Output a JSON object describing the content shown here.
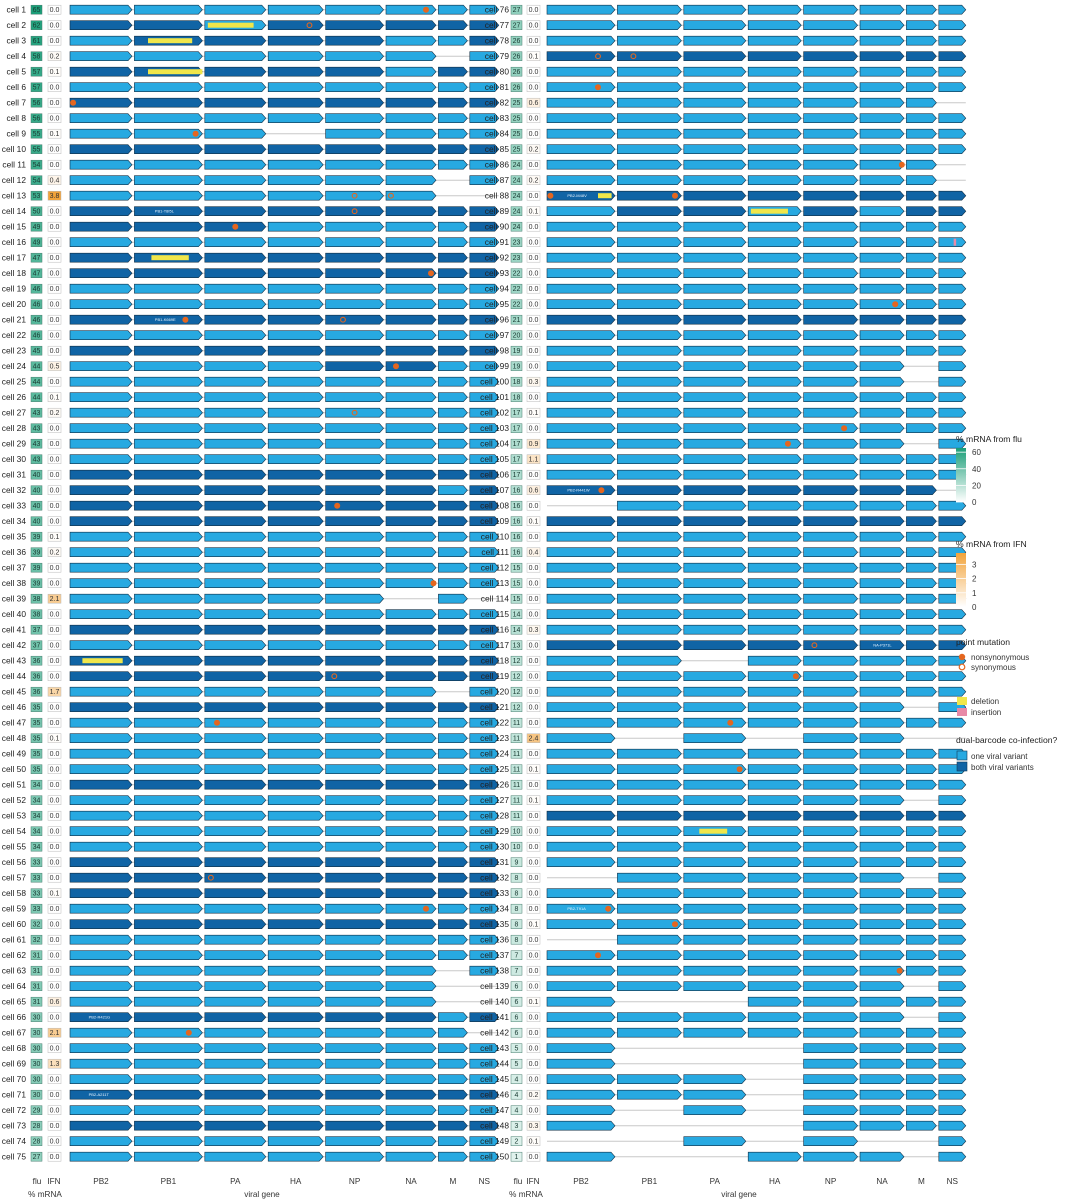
{
  "chart_data": {
    "type": "heatmap",
    "title": "",
    "genes": [
      "PB2",
      "PB1",
      "PA",
      "HA",
      "NP",
      "NA",
      "M",
      "NS"
    ],
    "column_headers": {
      "flu": "flu",
      "ifn": "IFN"
    },
    "xlabel_left": "% mRNA",
    "xlabel_right": "viral gene",
    "legend": {
      "flu": {
        "title": "% mRNA from flu",
        "ticks": [
          "60",
          "40",
          "20",
          "0"
        ],
        "range": [
          0,
          65
        ]
      },
      "ifn": {
        "title": "% mRNA from IFN",
        "ticks": [
          "3",
          "2",
          "1",
          "0"
        ],
        "range": [
          0,
          3.8
        ]
      },
      "mutation": {
        "title": "point mutation",
        "items": [
          "nonsynonymous",
          "synonymous"
        ]
      },
      "indel": {
        "items": [
          "deletion",
          "insertion"
        ]
      },
      "dual": {
        "title": "dual-barcode co-infection?",
        "items": [
          "one viral variant",
          "both viral variants"
        ]
      }
    },
    "colors": {
      "one": "#27a9e1",
      "both": "#1064a5",
      "mutation": "#e4661f",
      "deletion": "#f0e64a",
      "insertion": "#e88aa7",
      "ifn": "#f2a33a",
      "flu": "#1a9e78"
    },
    "row_encoding": "flu pct | ifn pct | genes PB2..NS (1 = one variant, 2 = both variants, 0 = absent)",
    "rows": [
      [
        "cell 1",
        65,
        "0.0",
        "11111111"
      ],
      [
        "cell 2",
        62,
        "0.0",
        "22122222"
      ],
      [
        "cell 3",
        61,
        "0.0",
        "12222112"
      ],
      [
        "cell 4",
        58,
        "0.2",
        "11111101"
      ],
      [
        "cell 5",
        57,
        "0.1",
        "22222122"
      ],
      [
        "cell 6",
        57,
        "0.0",
        "11111111"
      ],
      [
        "cell 7",
        56,
        "0.0",
        "22222222"
      ],
      [
        "cell 8",
        56,
        "0.0",
        "11111111"
      ],
      [
        "cell 9",
        55,
        "0.1",
        "11101111"
      ],
      [
        "cell 10",
        55,
        "0.0",
        "22222222"
      ],
      [
        "cell 11",
        54,
        "0.0",
        "11111111"
      ],
      [
        "cell 12",
        54,
        "0.4",
        "11111101"
      ],
      [
        "cell 13",
        53,
        "3.8",
        "11111100"
      ],
      [
        "cell 14",
        50,
        "0.0",
        "22222222"
      ],
      [
        "cell 15",
        49,
        "0.0",
        "22211112"
      ],
      [
        "cell 16",
        49,
        "0.0",
        "11111111"
      ],
      [
        "cell 17",
        47,
        "0.0",
        "22222222"
      ],
      [
        "cell 18",
        47,
        "0.0",
        "22222222"
      ],
      [
        "cell 19",
        46,
        "0.0",
        "11111111"
      ],
      [
        "cell 20",
        46,
        "0.0",
        "11111111"
      ],
      [
        "cell 21",
        46,
        "0.0",
        "22222222"
      ],
      [
        "cell 22",
        46,
        "0.0",
        "11111111"
      ],
      [
        "cell 23",
        45,
        "0.0",
        "22222222"
      ],
      [
        "cell 24",
        44,
        "0.5",
        "11112211"
      ],
      [
        "cell 25",
        44,
        "0.0",
        "11111111"
      ],
      [
        "cell 26",
        44,
        "0.1",
        "11111111"
      ],
      [
        "cell 27",
        43,
        "0.2",
        "11111111"
      ],
      [
        "cell 28",
        43,
        "0.0",
        "11111111"
      ],
      [
        "cell 29",
        43,
        "0.0",
        "11111111"
      ],
      [
        "cell 30",
        43,
        "0.0",
        "11111111"
      ],
      [
        "cell 31",
        40,
        "0.0",
        "22222222"
      ],
      [
        "cell 32",
        40,
        "0.0",
        "22222212"
      ],
      [
        "cell 33",
        40,
        "0.0",
        "22222222"
      ],
      [
        "cell 34",
        40,
        "0.0",
        "22222222"
      ],
      [
        "cell 35",
        39,
        "0.1",
        "11111111"
      ],
      [
        "cell 36",
        39,
        "0.2",
        "11111111"
      ],
      [
        "cell 37",
        39,
        "0.0",
        "11111111"
      ],
      [
        "cell 38",
        39,
        "0.0",
        "11111111"
      ],
      [
        "cell 39",
        38,
        "2.1",
        "11111010"
      ],
      [
        "cell 40",
        38,
        "0.0",
        "11111111"
      ],
      [
        "cell 41",
        37,
        "0.0",
        "22222222"
      ],
      [
        "cell 42",
        37,
        "0.0",
        "11111111"
      ],
      [
        "cell 43",
        36,
        "0.0",
        "22222222"
      ],
      [
        "cell 44",
        36,
        "0.0",
        "22222222"
      ],
      [
        "cell 45",
        36,
        "1.7",
        "11111101"
      ],
      [
        "cell 46",
        35,
        "0.0",
        "22222222"
      ],
      [
        "cell 47",
        35,
        "0.0",
        "11111111"
      ],
      [
        "cell 48",
        35,
        "0.1",
        "11111111"
      ],
      [
        "cell 49",
        35,
        "0.0",
        "11111111"
      ],
      [
        "cell 50",
        35,
        "0.0",
        "11111111"
      ],
      [
        "cell 51",
        34,
        "0.0",
        "22222222"
      ],
      [
        "cell 52",
        34,
        "0.0",
        "11111111"
      ],
      [
        "cell 53",
        34,
        "0.0",
        "11111111"
      ],
      [
        "cell 54",
        34,
        "0.0",
        "11111111"
      ],
      [
        "cell 55",
        34,
        "0.0",
        "11111111"
      ],
      [
        "cell 56",
        33,
        "0.0",
        "22222222"
      ],
      [
        "cell 57",
        33,
        "0.0",
        "22222222"
      ],
      [
        "cell 58",
        33,
        "0.1",
        "22222222"
      ],
      [
        "cell 59",
        33,
        "0.0",
        "11111111"
      ],
      [
        "cell 60",
        32,
        "0.0",
        "22222222"
      ],
      [
        "cell 61",
        32,
        "0.0",
        "11111111"
      ],
      [
        "cell 62",
        31,
        "0.0",
        "11111111"
      ],
      [
        "cell 63",
        31,
        "0.0",
        "11111101"
      ],
      [
        "cell 64",
        31,
        "0.0",
        "11111100"
      ],
      [
        "cell 65",
        31,
        "0.6",
        "11111100"
      ],
      [
        "cell 66",
        30,
        "0.0",
        "22222212"
      ],
      [
        "cell 67",
        30,
        "2.1",
        "11111110"
      ],
      [
        "cell 68",
        30,
        "0.0",
        "11111111"
      ],
      [
        "cell 69",
        30,
        "1.3",
        "11111111"
      ],
      [
        "cell 70",
        30,
        "0.0",
        "11111111"
      ],
      [
        "cell 71",
        30,
        "0.0",
        "22222222"
      ],
      [
        "cell 72",
        29,
        "0.0",
        "11111111"
      ],
      [
        "cell 73",
        28,
        "0.0",
        "22222222"
      ],
      [
        "cell 74",
        28,
        "0.0",
        "11111111"
      ],
      [
        "cell 75",
        27,
        "0.0",
        "11111111"
      ],
      [
        "cell 76",
        27,
        "0.0",
        "11111111"
      ],
      [
        "cell 77",
        27,
        "0.0",
        "11111111"
      ],
      [
        "cell 78",
        26,
        "0.0",
        "11111111"
      ],
      [
        "cell 79",
        26,
        "0.1",
        "22222222"
      ],
      [
        "cell 80",
        26,
        "0.0",
        "11111111"
      ],
      [
        "cell 81",
        26,
        "0.0",
        "11111111"
      ],
      [
        "cell 82",
        25,
        "0.6",
        "11111110"
      ],
      [
        "cell 83",
        25,
        "0.0",
        "11111111"
      ],
      [
        "cell 84",
        25,
        "0.0",
        "11111111"
      ],
      [
        "cell 85",
        25,
        "0.2",
        "11111111"
      ],
      [
        "cell 86",
        24,
        "0.0",
        "11111110"
      ],
      [
        "cell 87",
        24,
        "0.2",
        "11111110"
      ],
      [
        "cell 88",
        24,
        "0.0",
        "22222222"
      ],
      [
        "cell 89",
        24,
        "0.1",
        "12212122"
      ],
      [
        "cell 90",
        24,
        "0.0",
        "11111111"
      ],
      [
        "cell 91",
        23,
        "0.0",
        "11111111"
      ],
      [
        "cell 92",
        23,
        "0.0",
        "11111111"
      ],
      [
        "cell 93",
        22,
        "0.0",
        "11111111"
      ],
      [
        "cell 94",
        22,
        "0.0",
        "11111111"
      ],
      [
        "cell 95",
        22,
        "0.0",
        "11111111"
      ],
      [
        "cell 96",
        21,
        "0.0",
        "22222222"
      ],
      [
        "cell 97",
        20,
        "0.0",
        "11111111"
      ],
      [
        "cell 98",
        19,
        "0.0",
        "11111111"
      ],
      [
        "cell 99",
        19,
        "0.0",
        "11111101"
      ],
      [
        "cell 100",
        18,
        "0.3",
        "11111101"
      ],
      [
        "cell 101",
        18,
        "0.0",
        "11111111"
      ],
      [
        "cell 102",
        17,
        "0.1",
        "11111111"
      ],
      [
        "cell 103",
        17,
        "0.0",
        "11111111"
      ],
      [
        "cell 104",
        17,
        "0.9",
        "11111101"
      ],
      [
        "cell 105",
        17,
        "1.1",
        "11111111"
      ],
      [
        "cell 106",
        17,
        "0.0",
        "11111111"
      ],
      [
        "cell 107",
        16,
        "0.6",
        "22222220"
      ],
      [
        "cell 108",
        16,
        "0.0",
        "01111111"
      ],
      [
        "cell 109",
        16,
        "0.1",
        "22222222"
      ],
      [
        "cell 110",
        16,
        "0.0",
        "11111111"
      ],
      [
        "cell 111",
        16,
        "0.4",
        "11111111"
      ],
      [
        "cell 112",
        15,
        "0.0",
        "11111111"
      ],
      [
        "cell 113",
        15,
        "0.0",
        "11111111"
      ],
      [
        "cell 114",
        15,
        "0.0",
        "11111111"
      ],
      [
        "cell 115",
        14,
        "0.0",
        "11111111"
      ],
      [
        "cell 116",
        14,
        "0.3",
        "11111111"
      ],
      [
        "cell 117",
        13,
        "0.0",
        "22222222"
      ],
      [
        "cell 118",
        12,
        "0.0",
        "11011111"
      ],
      [
        "cell 119",
        12,
        "0.0",
        "11111111"
      ],
      [
        "cell 120",
        12,
        "0.0",
        "11111111"
      ],
      [
        "cell 121",
        12,
        "0.0",
        "11111101"
      ],
      [
        "cell 122",
        11,
        "0.0",
        "11111111"
      ],
      [
        "cell 123",
        11,
        "2.4",
        "10101100"
      ],
      [
        "cell 124",
        11,
        "0.0",
        "11111111"
      ],
      [
        "cell 125",
        11,
        "0.1",
        "11111111"
      ],
      [
        "cell 126",
        11,
        "0.0",
        "11111111"
      ],
      [
        "cell 127",
        11,
        "0.1",
        "11111101"
      ],
      [
        "cell 128",
        11,
        "0.0",
        "22222222"
      ],
      [
        "cell 129",
        10,
        "0.0",
        "11111111"
      ],
      [
        "cell 130",
        10,
        "0.0",
        "11111111"
      ],
      [
        "cell 131",
        9,
        "0.0",
        "11111111"
      ],
      [
        "cell 132",
        8,
        "0.0",
        "01111101"
      ],
      [
        "cell 133",
        8,
        "0.0",
        "11111111"
      ],
      [
        "cell 134",
        8,
        "0.0",
        "11111111"
      ],
      [
        "cell 135",
        8,
        "0.1",
        "11111111"
      ],
      [
        "cell 136",
        8,
        "0.0",
        "01111111"
      ],
      [
        "cell 137",
        7,
        "0.0",
        "11111111"
      ],
      [
        "cell 138",
        7,
        "0.0",
        "11111111"
      ],
      [
        "cell 139",
        6,
        "0.0",
        "11111101"
      ],
      [
        "cell 140",
        6,
        "0.1",
        "10011111"
      ],
      [
        "cell 141",
        6,
        "0.0",
        "11111101"
      ],
      [
        "cell 142",
        6,
        "0.0",
        "11111111"
      ],
      [
        "cell 143",
        5,
        "0.0",
        "10001111"
      ],
      [
        "cell 144",
        5,
        "0.0",
        "10001111"
      ],
      [
        "cell 145",
        4,
        "0.0",
        "11101111"
      ],
      [
        "cell 146",
        4,
        "0.2",
        "11101111"
      ],
      [
        "cell 147",
        4,
        "0.0",
        "10101111"
      ],
      [
        "cell 148",
        3,
        "0.3",
        "10001111"
      ],
      [
        "cell 149",
        2,
        "0.1",
        "00101001"
      ],
      [
        "cell 150",
        1,
        "0.0",
        "10011101"
      ]
    ],
    "deletions": [
      {
        "row": "cell 2",
        "gene": "PA",
        "start": 0.05,
        "end": 0.8
      },
      {
        "row": "cell 3",
        "gene": "PB1",
        "start": 0.2,
        "end": 0.85
      },
      {
        "row": "cell 5",
        "gene": "PB1",
        "start": 0.2,
        "end": 1.0
      },
      {
        "row": "cell 17",
        "gene": "PB1",
        "start": 0.25,
        "end": 0.8
      },
      {
        "row": "cell 43",
        "gene": "PB2",
        "start": 0.2,
        "end": 0.85
      },
      {
        "row": "cell 88",
        "gene": "PB2",
        "start": 0.75,
        "end": 0.95
      },
      {
        "row": "cell 89",
        "gene": "HA",
        "start": 0.05,
        "end": 0.75
      },
      {
        "row": "cell 129",
        "gene": "PA",
        "start": 0.25,
        "end": 0.7
      }
    ],
    "insertions": [
      {
        "row": "cell 91",
        "gene": "NS",
        "pos": 0.55
      }
    ],
    "mutations": [
      {
        "row": "cell 1",
        "gene": "NA",
        "pos": 0.8,
        "syn": false
      },
      {
        "row": "cell 2",
        "gene": "HA",
        "pos": 0.75,
        "syn": true
      },
      {
        "row": "cell 7",
        "gene": "PB2",
        "pos": 0.05,
        "syn": false
      },
      {
        "row": "cell 9",
        "gene": "PB1",
        "pos": 0.9,
        "syn": false
      },
      {
        "row": "cell 13",
        "gene": "NP",
        "pos": 0.5,
        "syn": true
      },
      {
        "row": "cell 13",
        "gene": "NA",
        "pos": 0.1,
        "syn": true
      },
      {
        "row": "cell 14",
        "gene": "NP",
        "pos": 0.5,
        "syn": true
      },
      {
        "row": "cell 15",
        "gene": "PA",
        "pos": 0.5,
        "syn": false
      },
      {
        "row": "cell 18",
        "gene": "NA",
        "pos": 0.9,
        "syn": false
      },
      {
        "row": "cell 21",
        "gene": "PB1",
        "pos": 0.75,
        "syn": false
      },
      {
        "row": "cell 21",
        "gene": "NP",
        "pos": 0.3,
        "syn": true
      },
      {
        "row": "cell 24",
        "gene": "NA",
        "pos": 0.2,
        "syn": false
      },
      {
        "row": "cell 27",
        "gene": "NP",
        "pos": 0.5,
        "syn": true
      },
      {
        "row": "cell 33",
        "gene": "NP",
        "pos": 0.2,
        "syn": false
      },
      {
        "row": "cell 38",
        "gene": "NA",
        "pos": 0.95,
        "syn": false
      },
      {
        "row": "cell 44",
        "gene": "NP",
        "pos": 0.15,
        "syn": true
      },
      {
        "row": "cell 47",
        "gene": "PA",
        "pos": 0.2,
        "syn": false
      },
      {
        "row": "cell 57",
        "gene": "PA",
        "pos": 0.1,
        "syn": true
      },
      {
        "row": "cell 59",
        "gene": "NA",
        "pos": 0.8,
        "syn": false
      },
      {
        "row": "cell 67",
        "gene": "PB1",
        "pos": 0.8,
        "syn": false
      },
      {
        "row": "cell 79",
        "gene": "PB2",
        "pos": 0.75,
        "syn": true
      },
      {
        "row": "cell 79",
        "gene": "PB1",
        "pos": 0.25,
        "syn": true
      },
      {
        "row": "cell 81",
        "gene": "PB2",
        "pos": 0.75,
        "syn": false
      },
      {
        "row": "cell 86",
        "gene": "NA",
        "pos": 0.95,
        "syn": false
      },
      {
        "row": "cell 88",
        "gene": "PB2",
        "pos": 0.05,
        "syn": false
      },
      {
        "row": "cell 88",
        "gene": "PB1",
        "pos": 0.9,
        "syn": false
      },
      {
        "row": "cell 95",
        "gene": "NA",
        "pos": 0.8,
        "syn": false
      },
      {
        "row": "cell 103",
        "gene": "NP",
        "pos": 0.75,
        "syn": false
      },
      {
        "row": "cell 104",
        "gene": "HA",
        "pos": 0.75,
        "syn": false
      },
      {
        "row": "cell 107",
        "gene": "PB2",
        "pos": 0.8,
        "syn": false
      },
      {
        "row": "cell 117",
        "gene": "NP",
        "pos": 0.2,
        "syn": true
      },
      {
        "row": "cell 119",
        "gene": "HA",
        "pos": 0.9,
        "syn": false
      },
      {
        "row": "cell 122",
        "gene": "PA",
        "pos": 0.75,
        "syn": false
      },
      {
        "row": "cell 125",
        "gene": "PA",
        "pos": 0.9,
        "syn": false
      },
      {
        "row": "cell 134",
        "gene": "PB2",
        "pos": 0.9,
        "syn": false
      },
      {
        "row": "cell 135",
        "gene": "PB1",
        "pos": 0.9,
        "syn": false
      },
      {
        "row": "cell 137",
        "gene": "PB2",
        "pos": 0.75,
        "syn": false
      },
      {
        "row": "cell 138",
        "gene": "NA",
        "pos": 0.9,
        "syn": false
      }
    ],
    "mutation_labels": [
      {
        "row": "cell 14",
        "gene": "PB1",
        "text": "PB1-T8I5L"
      },
      {
        "row": "cell 21",
        "gene": "PB1",
        "text": "PB1-K669E"
      },
      {
        "row": "cell 66",
        "gene": "PB2",
        "text": "PB2-R421G"
      },
      {
        "row": "cell 71",
        "gene": "PB2",
        "text": "PB2-A211T"
      },
      {
        "row": "cell 88",
        "gene": "PB2",
        "text": "PB2-M48V"
      },
      {
        "row": "cell 107",
        "gene": "PB2",
        "text": "PB2-R441W"
      },
      {
        "row": "cell 117",
        "gene": "NA",
        "text": "NA-P371L"
      },
      {
        "row": "cell 134",
        "gene": "PB2",
        "text": "PB2-T91A"
      }
    ]
  }
}
